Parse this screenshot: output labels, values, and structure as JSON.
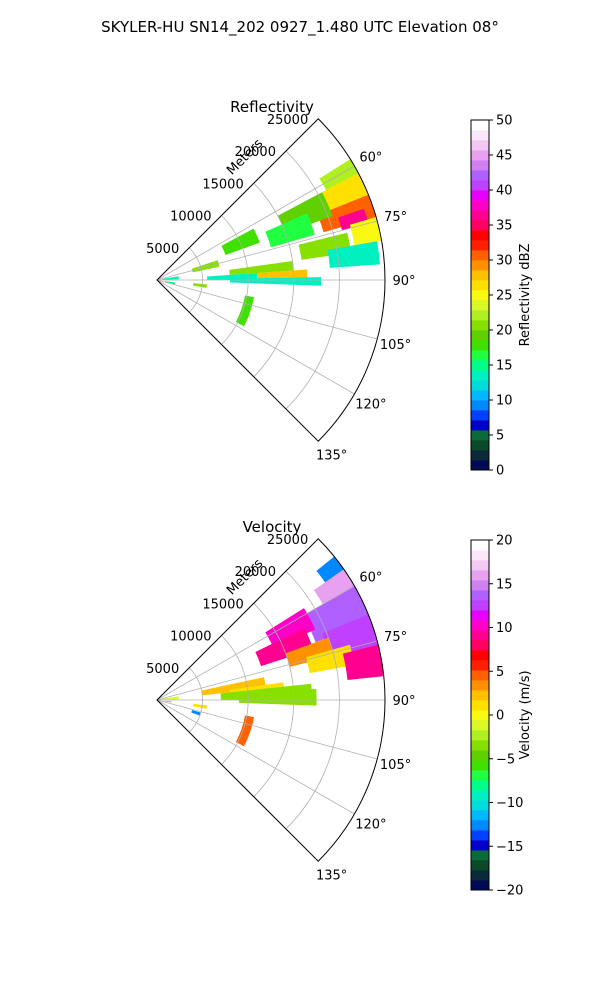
{
  "figure": {
    "suptitle": "SKYLER-HU  SN14_202  0927_1.480 UTC Elevation 08°"
  },
  "chart_data": [
    {
      "type": "polar-ppi",
      "title": "Reflectivity",
      "radial_label": "Meters",
      "theta_range_deg": [
        45,
        135
      ],
      "r_max": 25000,
      "r_ticks": [
        5000,
        10000,
        15000,
        20000,
        25000
      ],
      "r_tick_labels": [
        "5000",
        "10000",
        "15000",
        "20000",
        "25000"
      ],
      "theta_ticks": [
        60,
        75,
        90,
        105,
        120,
        135
      ],
      "theta_tick_labels": [
        "60°",
        "75°",
        "90°",
        "105°",
        "120°",
        "135°"
      ],
      "grid": true,
      "colorbar": {
        "label": "Reflectivity dBZ",
        "vmin": 0,
        "vmax": 50,
        "ticks": [
          0,
          5,
          10,
          15,
          20,
          25,
          30,
          35,
          40,
          45,
          50
        ],
        "tick_labels": [
          "0",
          "5",
          "10",
          "15",
          "20",
          "25",
          "30",
          "35",
          "40",
          "45",
          "50"
        ],
        "colors": [
          "#000a55",
          "#0a2a3a",
          "#0a4a28",
          "#0a6a3a",
          "#0000c8",
          "#0040ff",
          "#0088ff",
          "#00b8ff",
          "#00dcdc",
          "#00f0c0",
          "#00ff8a",
          "#20ff40",
          "#40e000",
          "#60d000",
          "#88e000",
          "#b0f020",
          "#d8f828",
          "#f8f810",
          "#ffe000",
          "#ffc000",
          "#ff9000",
          "#ff6000",
          "#ff2000",
          "#ff0000",
          "#ff0060",
          "#ff0090",
          "#ff00c8",
          "#e800ff",
          "#c040ff",
          "#b060ff",
          "#d080f0",
          "#e8a0f0",
          "#f4c8f4",
          "#fae8fa",
          "#ffffff"
        ]
      },
      "cells": [
        {
          "theta": [
            58,
            64
          ],
          "r": [
            21000,
            25500
          ],
          "value": 22
        },
        {
          "theta": [
            62,
            68
          ],
          "r": [
            20500,
            25500
          ],
          "value": 27
        },
        {
          "theta": [
            68,
            74
          ],
          "r": [
            19000,
            25000
          ],
          "value": 30
        },
        {
          "theta": [
            71,
            75
          ],
          "r": [
            21000,
            24000
          ],
          "value": 37
        },
        {
          "theta": [
            74,
            80
          ],
          "r": [
            22000,
            25500
          ],
          "value": 25
        },
        {
          "theta": [
            62,
            70
          ],
          "r": [
            15000,
            20500
          ],
          "value": 19
        },
        {
          "theta": [
            66,
            74
          ],
          "r": [
            13000,
            18000
          ],
          "value": 16
        },
        {
          "theta": [
            76,
            82
          ],
          "r": [
            16000,
            21500
          ],
          "value": 21
        },
        {
          "theta": [
            80,
            86
          ],
          "r": [
            19000,
            24500
          ],
          "value": 14
        },
        {
          "theta": [
            82,
            86
          ],
          "r": [
            8000,
            15000
          ],
          "value": 20
        },
        {
          "theta": [
            86,
            89
          ],
          "r": [
            11000,
            16500
          ],
          "value": 28
        },
        {
          "theta": [
            86,
            90
          ],
          "r": [
            5500,
            11000
          ],
          "value": 13
        },
        {
          "theta": [
            89,
            92
          ],
          "r": [
            8000,
            18000
          ],
          "value": 13
        },
        {
          "theta": [
            62,
            70
          ],
          "r": [
            8000,
            12000
          ],
          "value": 18
        },
        {
          "theta": [
            72,
            78
          ],
          "r": [
            4000,
            7000
          ],
          "value": 20
        },
        {
          "theta": [
            95,
            99
          ],
          "r": [
            4000,
            5500
          ],
          "value": 20
        },
        {
          "theta": [
            100,
            118
          ],
          "r": [
            9800,
            10800
          ],
          "value": 18
        },
        {
          "theta": [
            80,
            88
          ],
          "r": [
            600,
            2400
          ],
          "value": 14
        },
        {
          "theta": [
            98,
            104
          ],
          "r": [
            900,
            2000
          ],
          "value": 15
        }
      ]
    },
    {
      "type": "polar-ppi",
      "title": "Velocity",
      "radial_label": "Meters",
      "theta_range_deg": [
        45,
        135
      ],
      "r_max": 25000,
      "r_ticks": [
        5000,
        10000,
        15000,
        20000,
        25000
      ],
      "r_tick_labels": [
        "5000",
        "10000",
        "15000",
        "20000",
        "25000"
      ],
      "theta_ticks": [
        60,
        75,
        90,
        105,
        120,
        135
      ],
      "theta_tick_labels": [
        "60°",
        "75°",
        "90°",
        "105°",
        "120°",
        "135°"
      ],
      "grid": true,
      "colorbar": {
        "label": "Velocity (m/s)",
        "vmin": -20,
        "vmax": 20,
        "ticks": [
          -20,
          -15,
          -10,
          -5,
          0,
          5,
          10,
          15,
          20
        ],
        "tick_labels": [
          "−20",
          "−15",
          "−10",
          "−5",
          "0",
          "5",
          "10",
          "15",
          "20"
        ],
        "colors": [
          "#000a55",
          "#0a2a3a",
          "#0a4a28",
          "#0a6a3a",
          "#0000c8",
          "#0040ff",
          "#0088ff",
          "#00b8ff",
          "#00dcdc",
          "#00f0c0",
          "#00ff8a",
          "#20ff40",
          "#40e000",
          "#60d000",
          "#88e000",
          "#b0f020",
          "#d8f828",
          "#f8f810",
          "#ffe000",
          "#ffc000",
          "#ff9000",
          "#ff6000",
          "#ff2000",
          "#ff0000",
          "#ff0060",
          "#ff0090",
          "#ff00c8",
          "#e800ff",
          "#c040ff",
          "#b060ff",
          "#d080f0",
          "#e8a0f0",
          "#f4c8f4",
          "#fae8fa",
          "#ffffff"
        ]
      },
      "cells": [
        {
          "theta": [
            51,
            56
          ],
          "r": [
            22500,
            25500
          ],
          "value": -13
        },
        {
          "theta": [
            55,
            62
          ],
          "r": [
            21000,
            25500
          ],
          "value": 16
        },
        {
          "theta": [
            60,
            70
          ],
          "r": [
            18500,
            25500
          ],
          "value": 14
        },
        {
          "theta": [
            68,
            78
          ],
          "r": [
            19500,
            25500
          ],
          "value": 12
        },
        {
          "theta": [
            58,
            66
          ],
          "r": [
            14000,
            19000
          ],
          "value": 10
        },
        {
          "theta": [
            64,
            72
          ],
          "r": [
            12000,
            18000
          ],
          "value": 9
        },
        {
          "theta": [
            70,
            76
          ],
          "r": [
            15000,
            20000
          ],
          "value": 3
        },
        {
          "theta": [
            74,
            80
          ],
          "r": [
            17000,
            22000
          ],
          "value": 1
        },
        {
          "theta": [
            76,
            84
          ],
          "r": [
            21000,
            25000
          ],
          "value": 9
        },
        {
          "theta": [
            78,
            84
          ],
          "r": [
            5000,
            12000
          ],
          "value": 2
        },
        {
          "theta": [
            82,
            86
          ],
          "r": [
            8000,
            14000
          ],
          "value": 1
        },
        {
          "theta": [
            84,
            90
          ],
          "r": [
            7000,
            17000
          ],
          "value": -4
        },
        {
          "theta": [
            86,
            92
          ],
          "r": [
            9000,
            17500
          ],
          "value": -3
        },
        {
          "theta": [
            96,
            100
          ],
          "r": [
            4000,
            5500
          ],
          "value": 1
        },
        {
          "theta": [
            100,
            118
          ],
          "r": [
            9800,
            10800
          ],
          "value": 5
        },
        {
          "theta": [
            80,
            88
          ],
          "r": [
            600,
            2400
          ],
          "value": -1
        },
        {
          "theta": [
            96,
            100
          ],
          "r": [
            800,
            1600
          ],
          "value": 15
        },
        {
          "theta": [
            106,
            110
          ],
          "r": [
            4000,
            5000
          ],
          "value": -13
        }
      ]
    }
  ]
}
